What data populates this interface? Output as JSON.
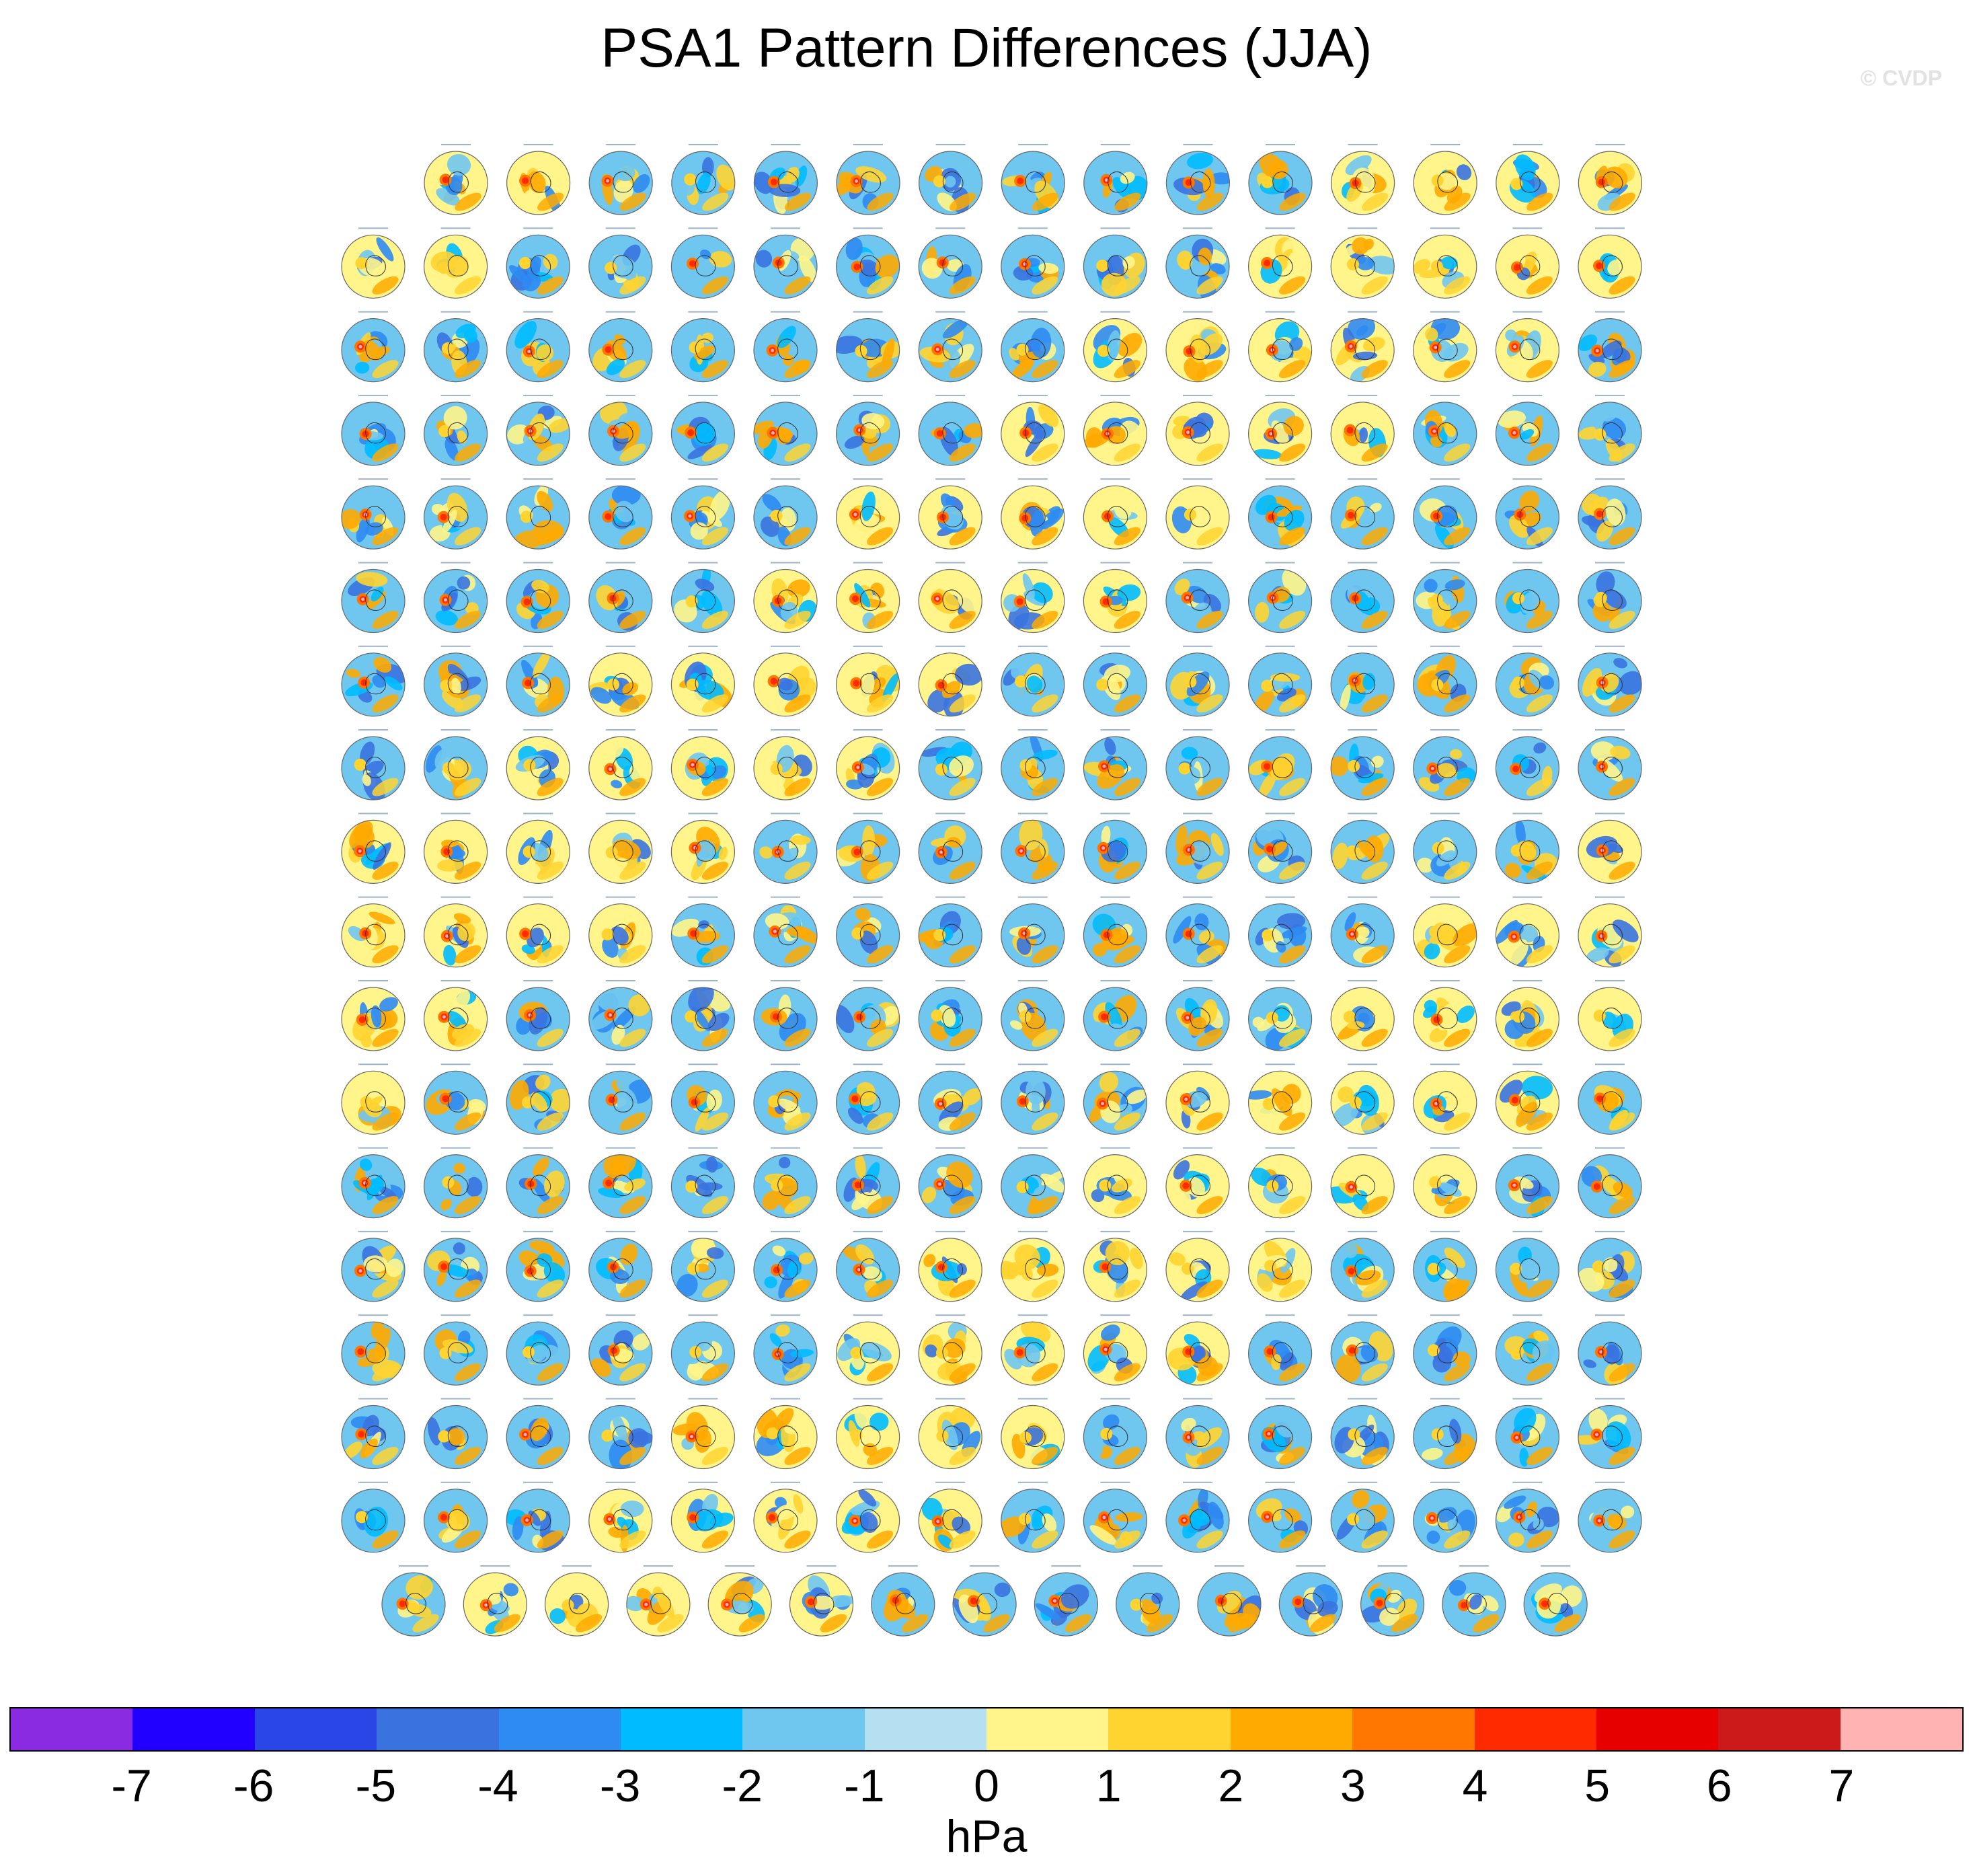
{
  "chart_data": {
    "type": "heatmap",
    "title": "PSA1 Pattern Differences (JJA)",
    "watermark": "© CVDP",
    "units_label": "hPa",
    "description_rows": [
      15,
      16,
      16,
      16,
      16,
      16,
      16,
      16,
      16,
      16,
      16,
      16,
      16,
      16,
      16,
      16,
      16,
      15
    ],
    "colorbar": {
      "levels": [
        -7,
        -6,
        -5,
        -4,
        -3,
        -2,
        -1,
        0,
        1,
        2,
        3,
        4,
        5,
        6,
        7
      ],
      "tick_labels": [
        "-7",
        "-6",
        "-5",
        "-4",
        "-3",
        "-2",
        "-1",
        "0",
        "1",
        "2",
        "3",
        "4",
        "5",
        "6",
        "7"
      ],
      "colors": [
        "#8a2be2",
        "#2200ff",
        "#2a46e6",
        "#3a73e0",
        "#2e8bf2",
        "#00bbff",
        "#6fc7f0",
        "#b5e0f2",
        "#fff58a",
        "#ffd430",
        "#ffaa00",
        "#ff7700",
        "#ff2a00",
        "#e60000",
        "#cc1a1a",
        "#ffb3b3"
      ]
    }
  }
}
